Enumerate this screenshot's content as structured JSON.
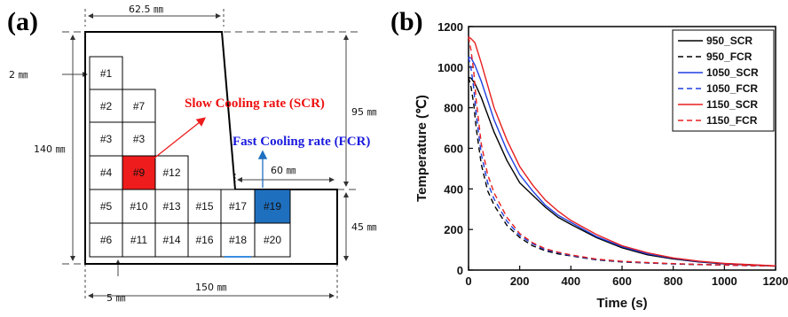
{
  "panel_a": {
    "label": "(a)",
    "dims": {
      "top": "62.5 ㎜",
      "left": "140 ㎜",
      "right_upper": "95 ㎜",
      "right_lower": "45 ㎜",
      "step": "60 ㎜",
      "bottom": "150 ㎜",
      "cell_size": "2 ㎜",
      "margin": "5 ㎜"
    },
    "cells": [
      "#1",
      "#2",
      "#7",
      "#3",
      "#3",
      "#4",
      "#9",
      "#12",
      "#5",
      "#10",
      "#13",
      "#15",
      "#17",
      "#19",
      "#6",
      "#11",
      "#14",
      "#16",
      "#18",
      "#20"
    ],
    "slow_label": "Slow Cooling rate (SCR)",
    "fast_label": "Fast Cooling rate (FCR)",
    "colors": {
      "slow": "#ee1c1c",
      "fast": "#1f6fbf",
      "slow_text": "#ee1111",
      "fast_text": "#1a1add"
    }
  },
  "panel_b": {
    "label": "(b)"
  },
  "chart_data": {
    "type": "line",
    "xlabel": "Time (s)",
    "ylabel": "Temperature (℃)",
    "xlim": [
      0,
      1200
    ],
    "ylim": [
      0,
      1200
    ],
    "xticks": [
      "0",
      "200",
      "400",
      "600",
      "800",
      "1000",
      "1200"
    ],
    "yticks": [
      "0",
      "200",
      "400",
      "600",
      "800",
      "1000",
      "1200"
    ],
    "legend_position": "top-right",
    "grid": false,
    "series": [
      {
        "name": "950_SCR",
        "color": "#000000",
        "dash": "solid",
        "x": [
          0,
          10,
          25,
          50,
          100,
          150,
          200,
          250,
          300,
          350,
          400,
          500,
          600,
          700,
          800,
          900,
          1000,
          1100,
          1200
        ],
        "y": [
          950,
          945,
          920,
          850,
          680,
          540,
          430,
          370,
          310,
          260,
          225,
          160,
          110,
          75,
          55,
          40,
          30,
          25,
          20
        ]
      },
      {
        "name": "950_FCR",
        "color": "#000000",
        "dash": "dashed",
        "x": [
          0,
          10,
          20,
          30,
          50,
          75,
          100,
          150,
          200,
          250,
          300,
          350,
          400,
          500,
          600,
          700,
          800,
          900,
          1000,
          1100,
          1200
        ],
        "y": [
          950,
          900,
          820,
          700,
          520,
          390,
          320,
          220,
          160,
          120,
          95,
          80,
          70,
          50,
          40,
          35,
          30,
          27,
          25,
          22,
          20
        ]
      },
      {
        "name": "1050_SCR",
        "color": "#1f3fe0",
        "dash": "solid",
        "x": [
          0,
          10,
          25,
          50,
          100,
          150,
          200,
          250,
          300,
          350,
          400,
          500,
          600,
          700,
          800,
          900,
          1000,
          1100,
          1200
        ],
        "y": [
          1050,
          1045,
          1010,
          930,
          740,
          590,
          470,
          390,
          320,
          270,
          235,
          165,
          115,
          80,
          58,
          42,
          32,
          26,
          20
        ]
      },
      {
        "name": "1050_FCR",
        "color": "#1f3fe0",
        "dash": "dashed",
        "x": [
          0,
          10,
          20,
          30,
          50,
          75,
          100,
          150,
          200,
          250,
          300,
          350,
          400,
          500,
          600,
          700,
          800,
          900,
          1000,
          1100,
          1200
        ],
        "y": [
          1050,
          990,
          900,
          770,
          570,
          430,
          350,
          240,
          170,
          130,
          100,
          85,
          72,
          52,
          42,
          36,
          31,
          28,
          25,
          22,
          20
        ]
      },
      {
        "name": "1150_SCR",
        "color": "#e81e1e",
        "dash": "solid",
        "x": [
          0,
          10,
          25,
          50,
          100,
          150,
          200,
          250,
          300,
          350,
          400,
          500,
          600,
          700,
          800,
          900,
          1000,
          1100,
          1200
        ],
        "y": [
          1150,
          1140,
          1120,
          1020,
          800,
          640,
          510,
          420,
          345,
          290,
          245,
          175,
          120,
          85,
          60,
          44,
          33,
          27,
          21
        ]
      },
      {
        "name": "1150_FCR",
        "color": "#e81e1e",
        "dash": "dashed",
        "x": [
          0,
          10,
          20,
          30,
          50,
          75,
          100,
          150,
          200,
          250,
          300,
          350,
          400,
          500,
          600,
          700,
          800,
          900,
          1000,
          1100,
          1200
        ],
        "y": [
          1150,
          1080,
          980,
          840,
          620,
          470,
          380,
          260,
          180,
          135,
          105,
          88,
          75,
          54,
          43,
          37,
          32,
          28,
          25,
          22,
          20
        ]
      }
    ]
  }
}
